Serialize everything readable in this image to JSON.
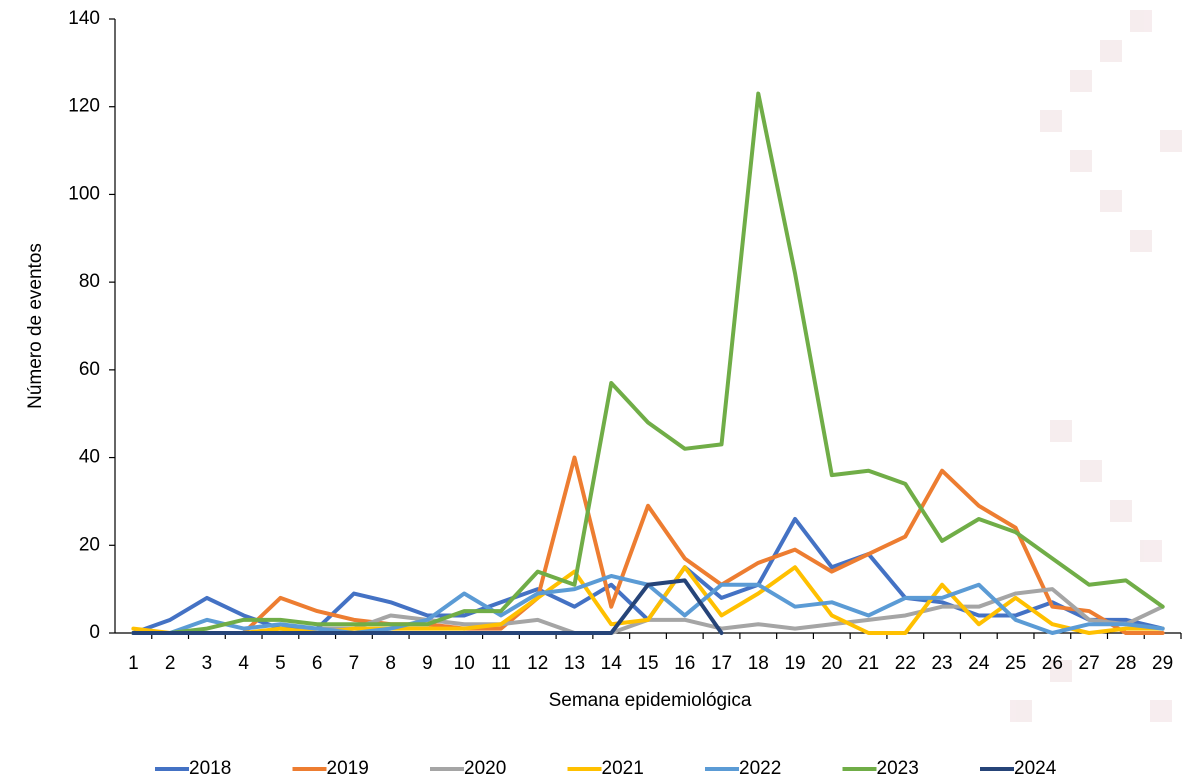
{
  "chart_data": {
    "type": "line",
    "xlabel": "Semana epidemiológica",
    "ylabel": "Número de eventos",
    "categories": [
      "1",
      "2",
      "3",
      "4",
      "5",
      "6",
      "7",
      "8",
      "9",
      "10",
      "11",
      "12",
      "13",
      "14",
      "15",
      "16",
      "17",
      "18",
      "19",
      "20",
      "21",
      "22",
      "23",
      "24",
      "25",
      "26",
      "27",
      "28",
      "29"
    ],
    "ylim": [
      0,
      140
    ],
    "yticks": [
      0,
      20,
      40,
      60,
      80,
      100,
      120,
      140
    ],
    "legend": "bottom",
    "series": [
      {
        "name": "2018",
        "color": "#4472c4",
        "values": [
          0,
          3,
          8,
          4,
          1,
          1,
          9,
          7,
          4,
          4,
          7,
          10,
          6,
          11,
          3,
          15,
          8,
          11,
          26,
          15,
          18,
          8,
          7,
          4,
          4,
          7,
          3,
          3,
          1
        ]
      },
      {
        "name": "2019",
        "color": "#ed7d31",
        "values": [
          0,
          0,
          0,
          0,
          8,
          5,
          3,
          2,
          2,
          1,
          1,
          8,
          40,
          6,
          29,
          17,
          11,
          16,
          19,
          14,
          18,
          22,
          37,
          29,
          24,
          6,
          5,
          0,
          0
        ]
      },
      {
        "name": "2020",
        "color": "#a5a5a5",
        "values": [
          0,
          0,
          0,
          0,
          0,
          1,
          1,
          4,
          3,
          2,
          2,
          3,
          0,
          0,
          3,
          3,
          1,
          2,
          1,
          2,
          3,
          4,
          6,
          6,
          9,
          10,
          3,
          2,
          6
        ]
      },
      {
        "name": "2021",
        "color": "#ffc000",
        "values": [
          1,
          0,
          0,
          0,
          1,
          0,
          1,
          1,
          1,
          1,
          2,
          8,
          14,
          2,
          3,
          15,
          4,
          9,
          15,
          4,
          0,
          0,
          11,
          2,
          8,
          2,
          0,
          1,
          1
        ]
      },
      {
        "name": "2022",
        "color": "#5b9bd5",
        "values": [
          0,
          0,
          3,
          1,
          2,
          1,
          0,
          1,
          3,
          9,
          4,
          9,
          10,
          13,
          11,
          4,
          11,
          11,
          6,
          7,
          4,
          8,
          8,
          11,
          3,
          0,
          2,
          2,
          1
        ]
      },
      {
        "name": "2023",
        "color": "#70ad47",
        "values": [
          0,
          0,
          1,
          3,
          3,
          2,
          2,
          2,
          2,
          5,
          5,
          14,
          11,
          57,
          48,
          42,
          43,
          123,
          82,
          36,
          37,
          34,
          21,
          26,
          23,
          17,
          11,
          12,
          6
        ]
      },
      {
        "name": "2024",
        "color": "#264478",
        "values": [
          0,
          0,
          0,
          0,
          0,
          0,
          0,
          0,
          0,
          0,
          0,
          0,
          0,
          0,
          11,
          12,
          0,
          null,
          null,
          null,
          null,
          null,
          null,
          null,
          null,
          null,
          null,
          null,
          null
        ]
      }
    ]
  }
}
